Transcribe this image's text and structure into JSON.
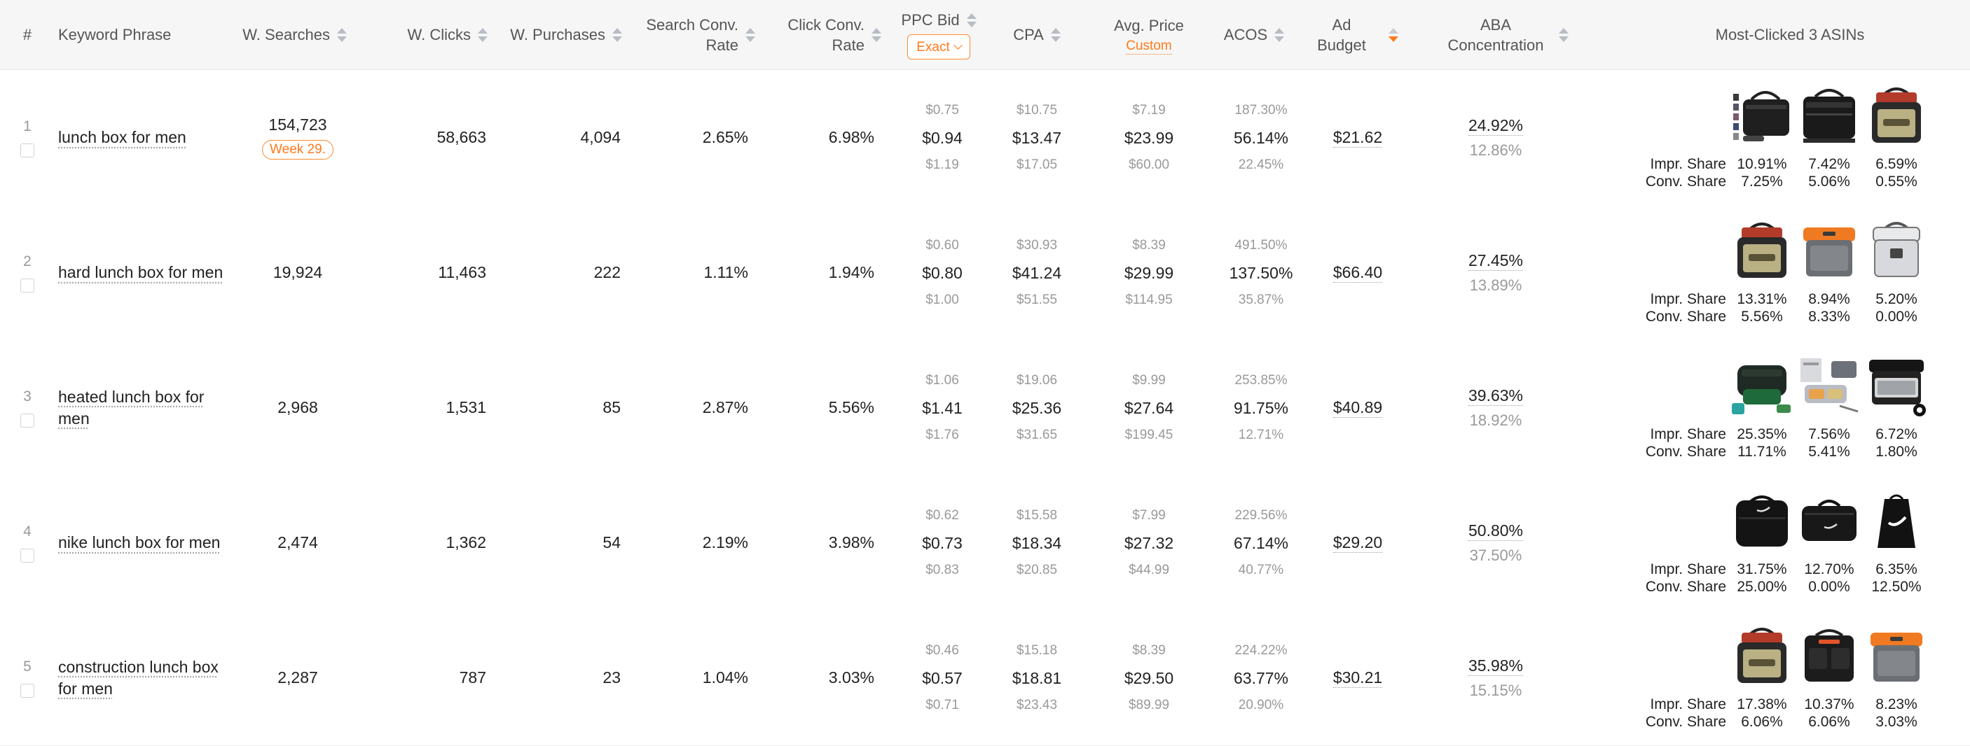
{
  "header": {
    "index": "#",
    "keyword": "Keyword Phrase",
    "searches": "W. Searches",
    "clicks": "W. Clicks",
    "purchases": "W. Purchases",
    "search_conv_1": "Search Conv.",
    "search_conv_2": "Rate",
    "click_conv_1": "Click Conv.",
    "click_conv_2": "Rate",
    "ppc_bid": "PPC Bid",
    "ppc_match": "Exact",
    "cpa": "CPA",
    "avg_price": "Avg. Price",
    "avg_price_link": "Custom",
    "acos": "ACOS",
    "ad_budget_1": "Ad",
    "ad_budget_2": "Budget",
    "aba_1": "ABA",
    "aba_2": "Concentration",
    "asins": "Most-Clicked 3 ASINs"
  },
  "labels": {
    "impr_share": "Impr. Share",
    "conv_share": "Conv. Share"
  },
  "colors": {
    "accent": "#ff7a1a",
    "header_bg": "#f6f6f6",
    "muted_text": "#999999"
  },
  "rows": [
    {
      "index": "1",
      "keyword": "lunch box for men",
      "searches": "154,723",
      "week_badge": "Week 29.",
      "clicks": "58,663",
      "purchases": "4,094",
      "search_conv": "2.65%",
      "click_conv": "6.98%",
      "ppc": {
        "low": "$0.75",
        "mid": "$0.94",
        "high": "$1.19"
      },
      "cpa": {
        "low": "$10.75",
        "mid": "$13.47",
        "high": "$17.05"
      },
      "price": {
        "low": "$7.19",
        "mid": "$23.99",
        "high": "$60.00"
      },
      "acos": {
        "low": "187.30%",
        "mid": "56.14%",
        "high": "22.45%"
      },
      "budget": "$21.62",
      "aba": {
        "top": "24.92%",
        "bottom": "12.86%"
      },
      "asins": [
        {
          "icon": "black-lunch-bag-set-icon",
          "impr": "10.91%",
          "conv": "7.25%"
        },
        {
          "icon": "black-lunch-bag-icon",
          "impr": "7.42%",
          "conv": "5.06%"
        },
        {
          "icon": "khaki-cooler-lunch-box-icon",
          "impr": "6.59%",
          "conv": "0.55%"
        }
      ]
    },
    {
      "index": "2",
      "keyword": "hard lunch box for men",
      "searches": "19,924",
      "clicks": "11,463",
      "purchases": "222",
      "search_conv": "1.11%",
      "click_conv": "1.94%",
      "ppc": {
        "low": "$0.60",
        "mid": "$0.80",
        "high": "$1.00"
      },
      "cpa": {
        "low": "$30.93",
        "mid": "$41.24",
        "high": "$51.55"
      },
      "price": {
        "low": "$8.39",
        "mid": "$29.99",
        "high": "$114.95"
      },
      "acos": {
        "low": "491.50%",
        "mid": "137.50%",
        "high": "35.87%"
      },
      "budget": "$66.40",
      "aba": {
        "top": "27.45%",
        "bottom": "13.89%"
      },
      "asins": [
        {
          "icon": "khaki-cooler-lunch-box-icon",
          "impr": "13.31%",
          "conv": "5.56%"
        },
        {
          "icon": "orange-hard-cooler-icon",
          "impr": "8.94%",
          "conv": "8.33%"
        },
        {
          "icon": "white-hard-cooler-icon",
          "impr": "5.20%",
          "conv": "0.00%"
        }
      ]
    },
    {
      "index": "3",
      "keyword": "heated lunch box for men",
      "searches": "2,968",
      "clicks": "1,531",
      "purchases": "85",
      "search_conv": "2.87%",
      "click_conv": "5.56%",
      "ppc": {
        "low": "$1.06",
        "mid": "$1.41",
        "high": "$1.76"
      },
      "cpa": {
        "low": "$19.06",
        "mid": "$25.36",
        "high": "$31.65"
      },
      "price": {
        "low": "$9.99",
        "mid": "$27.64",
        "high": "$199.45"
      },
      "acos": {
        "low": "253.85%",
        "mid": "91.75%",
        "high": "12.71%"
      },
      "budget": "$40.89",
      "aba": {
        "top": "39.63%",
        "bottom": "18.92%"
      },
      "asins": [
        {
          "icon": "green-heated-lunch-box-icon",
          "impr": "25.35%",
          "conv": "11.71%"
        },
        {
          "icon": "grey-heated-lunch-box-icon",
          "impr": "7.56%",
          "conv": "5.41%"
        },
        {
          "icon": "black-heated-lunch-box-icon",
          "impr": "6.72%",
          "conv": "1.80%"
        }
      ]
    },
    {
      "index": "4",
      "keyword": "nike lunch box for men",
      "searches": "2,474",
      "clicks": "1,362",
      "purchases": "54",
      "search_conv": "2.19%",
      "click_conv": "3.98%",
      "ppc": {
        "low": "$0.62",
        "mid": "$0.73",
        "high": "$0.83"
      },
      "cpa": {
        "low": "$15.58",
        "mid": "$18.34",
        "high": "$20.85"
      },
      "price": {
        "low": "$7.99",
        "mid": "$27.32",
        "high": "$44.99"
      },
      "acos": {
        "low": "229.56%",
        "mid": "67.14%",
        "high": "40.77%"
      },
      "budget": "$29.20",
      "aba": {
        "top": "50.80%",
        "bottom": "37.50%"
      },
      "asins": [
        {
          "icon": "black-nike-lunch-bag-icon",
          "impr": "31.75%",
          "conv": "25.00%"
        },
        {
          "icon": "black-nike-lunch-tote-icon",
          "impr": "12.70%",
          "conv": "0.00%"
        },
        {
          "icon": "black-nike-lunch-sack-icon",
          "impr": "6.35%",
          "conv": "12.50%"
        }
      ]
    },
    {
      "index": "5",
      "keyword": "construction lunch box for men",
      "searches": "2,287",
      "clicks": "787",
      "purchases": "23",
      "search_conv": "1.04%",
      "click_conv": "3.03%",
      "ppc": {
        "low": "$0.46",
        "mid": "$0.57",
        "high": "$0.71"
      },
      "cpa": {
        "low": "$15.18",
        "mid": "$18.81",
        "high": "$23.43"
      },
      "price": {
        "low": "$8.39",
        "mid": "$29.50",
        "high": "$89.99"
      },
      "acos": {
        "low": "224.22%",
        "mid": "63.77%",
        "high": "20.90%"
      },
      "budget": "$30.21",
      "aba": {
        "top": "35.98%",
        "bottom": "15.15%"
      },
      "asins": [
        {
          "icon": "khaki-cooler-lunch-box-icon",
          "impr": "17.38%",
          "conv": "6.06%"
        },
        {
          "icon": "black-tool-cooler-bag-icon",
          "impr": "10.37%",
          "conv": "6.06%"
        },
        {
          "icon": "orange-hard-cooler-icon",
          "impr": "8.23%",
          "conv": "3.03%"
        }
      ]
    }
  ]
}
